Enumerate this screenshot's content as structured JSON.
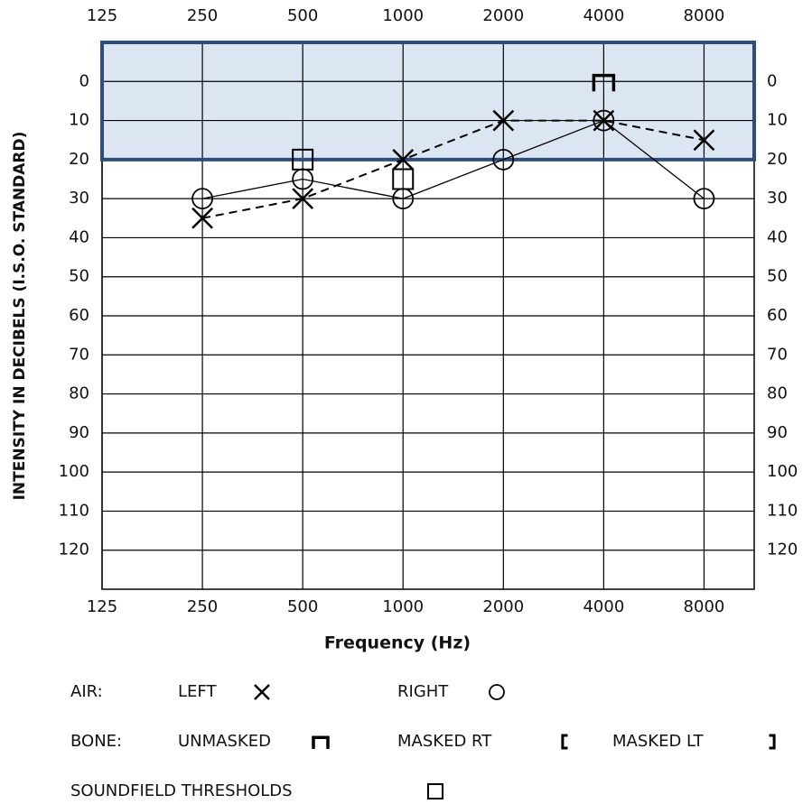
{
  "chart_data": {
    "type": "line",
    "y_title": "INTENSITY IN DECIBELS (I.S.O. STANDARD)",
    "x_title": "Frequency (Hz)",
    "log_x": true,
    "invert_y": true,
    "grid": true,
    "x": [
      250,
      500,
      1000,
      2000,
      4000,
      8000
    ],
    "xlim": [
      125,
      11314
    ],
    "xticks": [
      125,
      250,
      500,
      1000,
      2000,
      4000,
      8000
    ],
    "ylim": [
      -10,
      130
    ],
    "yticks": [
      0,
      10,
      20,
      30,
      40,
      50,
      60,
      70,
      80,
      90,
      100,
      110,
      120
    ],
    "band": {
      "ylim": [
        -10,
        20
      ],
      "color": "#dce6f2",
      "border": "#2e4d7b"
    },
    "series": [
      {
        "name": "LEFT",
        "color": "#000000",
        "marker": "x",
        "line": "dashed",
        "values": [
          35,
          30,
          20,
          10,
          10,
          15
        ]
      },
      {
        "name": "RIGHT",
        "color": "#000000",
        "marker": "o",
        "line": "solid",
        "values": [
          30,
          25,
          30,
          20,
          10,
          30
        ]
      },
      {
        "name": "UNMASKED",
        "color": "#000000",
        "marker": "cap",
        "line": "none",
        "values": [
          null,
          null,
          null,
          null,
          0,
          null
        ]
      },
      {
        "name": "SOUNDFIELD THRESHOLDS",
        "color": "#000000",
        "marker": "square",
        "line": "none",
        "values": [
          null,
          20,
          25,
          null,
          null,
          null
        ]
      }
    ],
    "legend_groups": [
      "AIR:",
      "BONE:"
    ],
    "legend_extra": [
      {
        "name": "MASKED RT",
        "marker": "lbracket"
      },
      {
        "name": "MASKED LT",
        "marker": "rbracket"
      }
    ]
  }
}
